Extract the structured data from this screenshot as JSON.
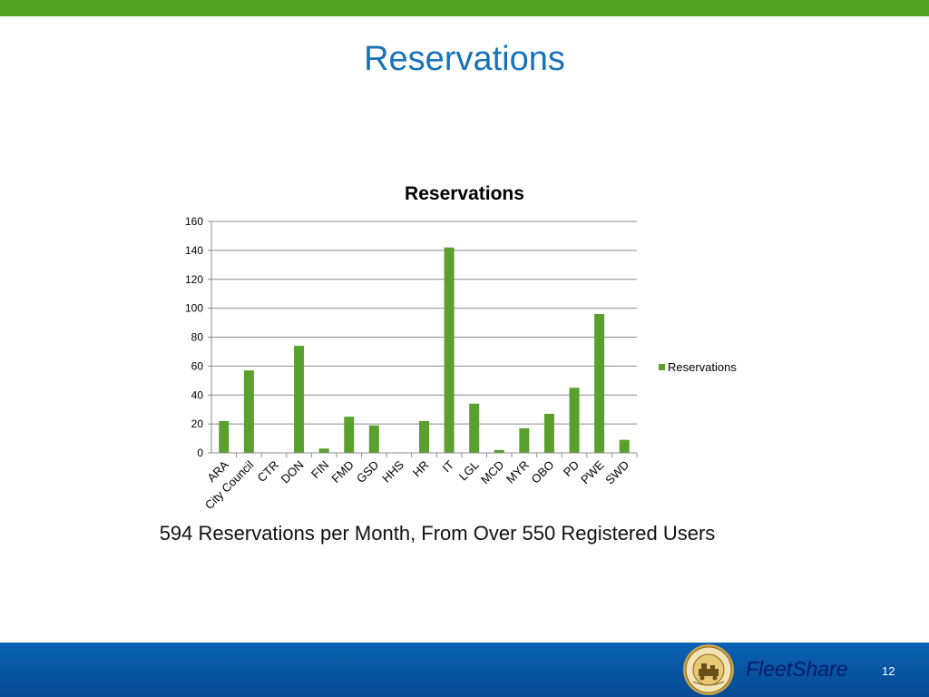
{
  "slide": {
    "title": "Reservations",
    "caption": "594 Reservations per Month, From Over 550 Registered Users",
    "brand": "FleetShare",
    "page_number": "12",
    "seal_text": "CITY OF HOUSTON TEXAS"
  },
  "colors": {
    "top_bar": "#52a325",
    "title": "#1a72b8",
    "bar": "#5aa02c",
    "footer": "#0856a3",
    "brand_text": "#0a1a6b"
  },
  "chart_data": {
    "type": "bar",
    "title": "Reservations",
    "categories": [
      "ARA",
      "City Council",
      "CTR",
      "DON",
      "FIN",
      "FMD",
      "GSD",
      "HHS",
      "HR",
      "IT",
      "LGL",
      "MCD",
      "MYR",
      "OBO",
      "PD",
      "PWE",
      "SWD"
    ],
    "series": [
      {
        "name": "Reservations",
        "values": [
          22,
          57,
          0,
          74,
          3,
          25,
          19,
          0,
          22,
          142,
          34,
          2,
          17,
          27,
          45,
          96,
          9
        ]
      }
    ],
    "ylim": [
      0,
      160
    ],
    "yticks": [
      0,
      20,
      40,
      60,
      80,
      100,
      120,
      140,
      160
    ],
    "grid": true,
    "legend": "right"
  }
}
